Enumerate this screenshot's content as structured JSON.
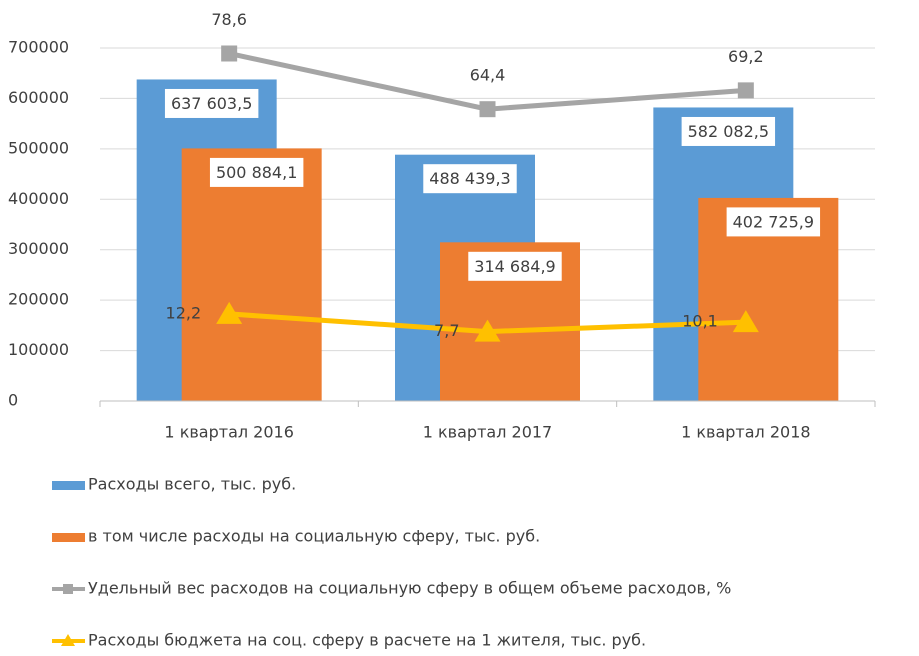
{
  "chart_data": {
    "type": "bar",
    "categories": [
      "1 квартал 2016",
      "1 квартал 2017",
      "1 квартал 2018"
    ],
    "series": [
      {
        "name": "Расходы всего, тыс. руб.",
        "color": "#5b9bd5",
        "values": [
          637603.5,
          488439.3,
          582082.5
        ],
        "value_labels": [
          "637 603,5",
          "488 439,3",
          "582 082,5"
        ]
      },
      {
        "name": "в том числе расходы на социальную сферу, тыс. руб.",
        "color": "#ed7d31",
        "values": [
          500884.1,
          314684.9,
          402725.9
        ],
        "value_labels": [
          "500 884,1",
          "314 684,9",
          "402 725,9"
        ]
      },
      {
        "name": "Удельный вес расходов на социальную сферу в общем объеме расходов, %",
        "type": "line",
        "axis": "y2",
        "marker": "square",
        "color": "#a5a5a5",
        "values": [
          78.6,
          64.4,
          69.2
        ],
        "value_labels": [
          "78,6",
          "64,4",
          "69,2"
        ]
      },
      {
        "name": "Расходы бюджета на соц. сферу в расчете на 1 жителя, тыс. руб.",
        "type": "line",
        "axis": "y2",
        "marker": "triangle",
        "color": "#ffc000",
        "values": [
          12.2,
          7.7,
          10.1
        ],
        "value_labels": [
          "12,2",
          "7,7",
          "10,1"
        ]
      }
    ],
    "ylim": [
      0,
      700000
    ],
    "yticks": [
      0,
      100000,
      200000,
      300000,
      400000,
      500000,
      600000,
      700000
    ],
    "y2lim": [
      -10,
      80
    ],
    "grid": true,
    "legend": "bottom"
  }
}
